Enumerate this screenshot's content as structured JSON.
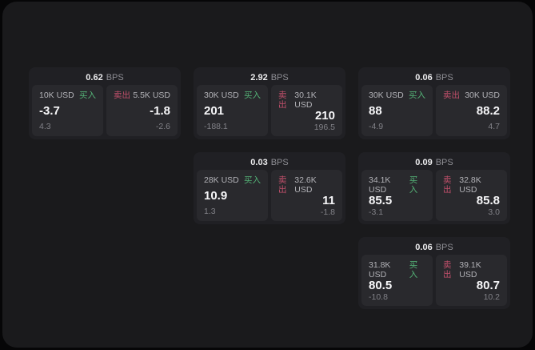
{
  "labels": {
    "bps_unit": "BPS",
    "buy": "买入",
    "sell": "卖出"
  },
  "colors": {
    "buy": "#54b377",
    "sell": "#c2506b",
    "surface": "#1a1a1c",
    "card": "#202024",
    "tile": "#29292d"
  },
  "cards": [
    {
      "bps": "0.62",
      "buy": {
        "amount": "10K USD",
        "price": "-3.7",
        "delta": "4.3"
      },
      "sell": {
        "amount": "5.5K USD",
        "price": "-1.8",
        "delta": "-2.6"
      }
    },
    {
      "bps": "2.92",
      "buy": {
        "amount": "30K USD",
        "price": "201",
        "delta": "-188.1"
      },
      "sell": {
        "amount": "30.1K USD",
        "price": "210",
        "delta": "196.5"
      }
    },
    {
      "bps": "0.06",
      "buy": {
        "amount": "30K USD",
        "price": "88",
        "delta": "-4.9"
      },
      "sell": {
        "amount": "30K USD",
        "price": "88.2",
        "delta": "4.7"
      }
    },
    {
      "bps": "0.03",
      "buy": {
        "amount": "28K USD",
        "price": "10.9",
        "delta": "1.3"
      },
      "sell": {
        "amount": "32.6K USD",
        "price": "11",
        "delta": "-1.8"
      }
    },
    {
      "bps": "0.09",
      "buy": {
        "amount": "34.1K USD",
        "price": "85.5",
        "delta": "-3.1"
      },
      "sell": {
        "amount": "32.8K USD",
        "price": "85.8",
        "delta": "3.0"
      }
    },
    {
      "bps": "0.06",
      "buy": {
        "amount": "31.8K USD",
        "price": "80.5",
        "delta": "-10.8"
      },
      "sell": {
        "amount": "39.1K USD",
        "price": "80.7",
        "delta": "10.2"
      }
    }
  ]
}
